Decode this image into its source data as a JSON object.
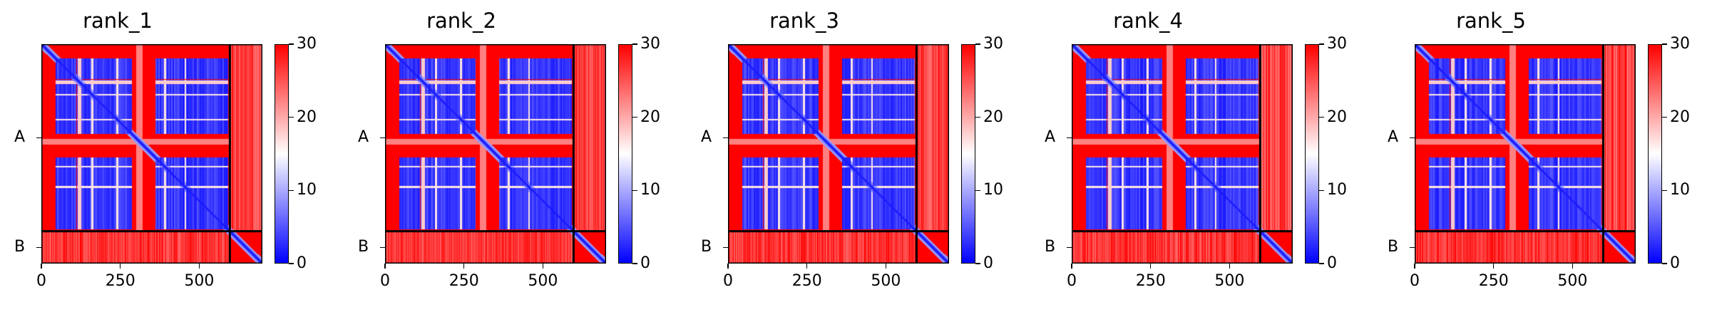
{
  "chart_data": [
    {
      "type": "heatmap",
      "title": "rank_1",
      "colorbar": {
        "min": 0,
        "max": 30,
        "ticks": [
          "0",
          "10",
          "20",
          "30"
        ],
        "colors": [
          "#0000ff",
          "#ffffff",
          "#ff0000"
        ]
      },
      "xticks": [
        "0",
        "250",
        "500"
      ],
      "xtick_values": [
        0,
        250,
        500
      ],
      "xlim": [
        0,
        700
      ],
      "yticks": [
        "A",
        "B"
      ],
      "chain_boundary": 597,
      "total_length": 700
    },
    {
      "type": "heatmap",
      "title": "rank_2",
      "colorbar": {
        "min": 0,
        "max": 30,
        "ticks": [
          "0",
          "10",
          "20",
          "30"
        ],
        "colors": [
          "#0000ff",
          "#ffffff",
          "#ff0000"
        ]
      },
      "xticks": [
        "0",
        "250",
        "500"
      ],
      "xtick_values": [
        0,
        250,
        500
      ],
      "xlim": [
        0,
        700
      ],
      "yticks": [
        "A",
        "B"
      ],
      "chain_boundary": 597,
      "total_length": 700
    },
    {
      "type": "heatmap",
      "title": "rank_3",
      "colorbar": {
        "min": 0,
        "max": 30,
        "ticks": [
          "0",
          "10",
          "20",
          "30"
        ],
        "colors": [
          "#0000ff",
          "#ffffff",
          "#ff0000"
        ]
      },
      "xticks": [
        "0",
        "250",
        "500"
      ],
      "xtick_values": [
        0,
        250,
        500
      ],
      "xlim": [
        0,
        700
      ],
      "yticks": [
        "A",
        "B"
      ],
      "chain_boundary": 597,
      "total_length": 700
    },
    {
      "type": "heatmap",
      "title": "rank_4",
      "colorbar": {
        "min": 0,
        "max": 30,
        "ticks": [
          "0",
          "10",
          "20",
          "30"
        ],
        "colors": [
          "#0000ff",
          "#ffffff",
          "#ff0000"
        ]
      },
      "xticks": [
        "0",
        "250",
        "500"
      ],
      "xtick_values": [
        0,
        250,
        500
      ],
      "xlim": [
        0,
        700
      ],
      "yticks": [
        "A",
        "B"
      ],
      "chain_boundary": 597,
      "total_length": 700
    },
    {
      "type": "heatmap",
      "title": "rank_5",
      "colorbar": {
        "min": 0,
        "max": 30,
        "ticks": [
          "0",
          "10",
          "20",
          "30"
        ],
        "colors": [
          "#0000ff",
          "#ffffff",
          "#ff0000"
        ]
      },
      "xticks": [
        "0",
        "250",
        "500"
      ],
      "xtick_values": [
        0,
        250,
        500
      ],
      "xlim": [
        0,
        700
      ],
      "yticks": [
        "A",
        "B"
      ],
      "chain_boundary": 597,
      "total_length": 700
    }
  ]
}
